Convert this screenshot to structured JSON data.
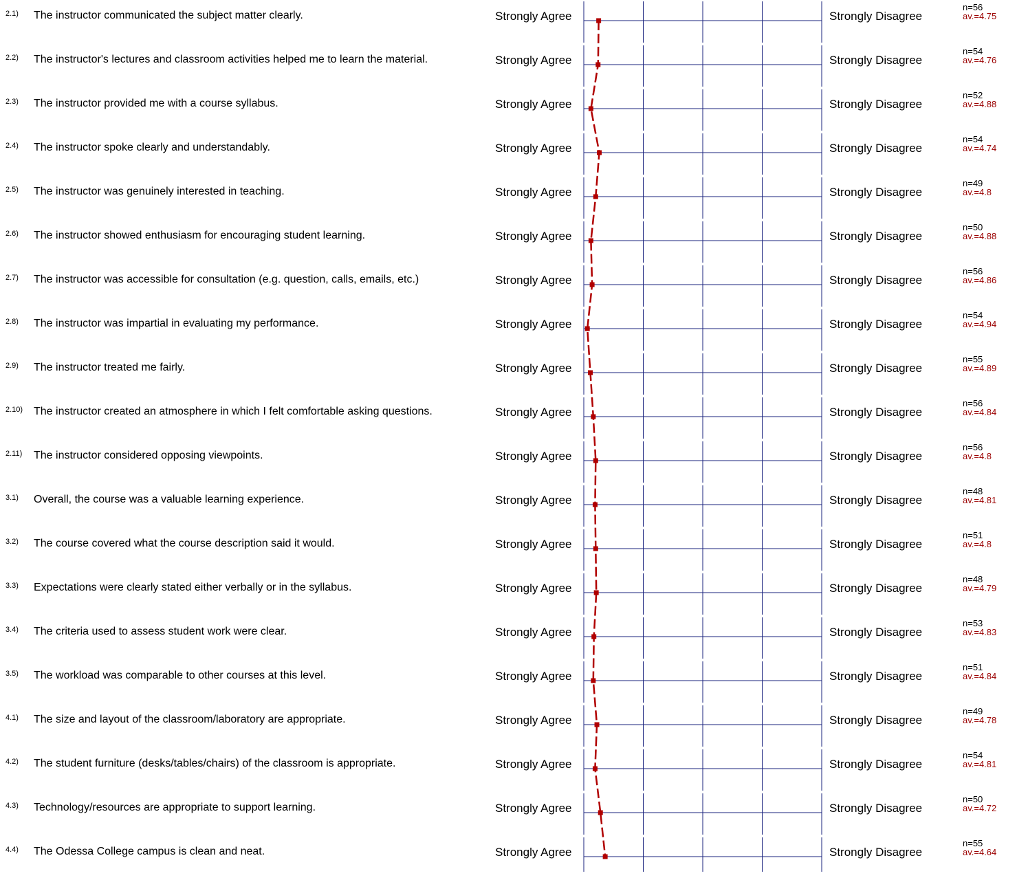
{
  "scale": {
    "left_label": "Strongly Agree",
    "right_label": "Strongly Disagree"
  },
  "colors": {
    "grid": "#1a237e",
    "profile": "#b00000",
    "average": "#9b0000"
  },
  "chart_data": {
    "type": "line",
    "title": "",
    "scale_range": [
      1,
      5
    ],
    "scale_left_value": 5,
    "scale_right_value": 1,
    "grid": true,
    "items": [
      {
        "num": "2.1)",
        "text": "The instructor communicated the subject matter clearly.",
        "n": "n=56",
        "av": "av.=4.75",
        "value": 4.75
      },
      {
        "num": "2.2)",
        "text": "The instructor's lectures and classroom activities helped me to learn the material.",
        "n": "n=54",
        "av": "av.=4.76",
        "value": 4.76
      },
      {
        "num": "2.3)",
        "text": "The instructor provided me with a course syllabus.",
        "n": "n=52",
        "av": "av.=4.88",
        "value": 4.88
      },
      {
        "num": "2.4)",
        "text": "The instructor spoke clearly and understandably.",
        "n": "n=54",
        "av": "av.=4.74",
        "value": 4.74
      },
      {
        "num": "2.5)",
        "text": "The instructor was genuinely interested in teaching.",
        "n": "n=49",
        "av": "av.=4.8",
        "value": 4.8
      },
      {
        "num": "2.6)",
        "text": "The instructor showed enthusiasm for encouraging student learning.",
        "n": "n=50",
        "av": "av.=4.88",
        "value": 4.88
      },
      {
        "num": "2.7)",
        "text": "The instructor was accessible for consultation (e.g. question, calls, emails, etc.)",
        "n": "n=56",
        "av": "av.=4.86",
        "value": 4.86
      },
      {
        "num": "2.8)",
        "text": "The instructor was impartial in evaluating my performance.",
        "n": "n=54",
        "av": "av.=4.94",
        "value": 4.94
      },
      {
        "num": "2.9)",
        "text": "The instructor treated me fairly.",
        "n": "n=55",
        "av": "av.=4.89",
        "value": 4.89
      },
      {
        "num": "2.10)",
        "text": "The instructor created an atmosphere in which I felt comfortable asking questions.",
        "n": "n=56",
        "av": "av.=4.84",
        "value": 4.84
      },
      {
        "num": "2.11)",
        "text": "The instructor considered opposing viewpoints.",
        "n": "n=56",
        "av": "av.=4.8",
        "value": 4.8
      },
      {
        "num": "3.1)",
        "text": "Overall, the course was a valuable learning experience.",
        "n": "n=48",
        "av": "av.=4.81",
        "value": 4.81
      },
      {
        "num": "3.2)",
        "text": "The course covered what the course description said it would.",
        "n": "n=51",
        "av": "av.=4.8",
        "value": 4.8
      },
      {
        "num": "3.3)",
        "text": "Expectations were clearly stated either verbally or in the syllabus.",
        "n": "n=48",
        "av": "av.=4.79",
        "value": 4.79
      },
      {
        "num": "3.4)",
        "text": "The criteria used to assess student work were clear.",
        "n": "n=53",
        "av": "av.=4.83",
        "value": 4.83
      },
      {
        "num": "3.5)",
        "text": "The workload was comparable to other courses at this level.",
        "n": "n=51",
        "av": "av.=4.84",
        "value": 4.84
      },
      {
        "num": "4.1)",
        "text": "The size and layout of the classroom/laboratory are appropriate.",
        "n": "n=49",
        "av": "av.=4.78",
        "value": 4.78
      },
      {
        "num": "4.2)",
        "text": "The student furniture (desks/tables/chairs) of the classroom is appropriate.",
        "n": "n=54",
        "av": "av.=4.81",
        "value": 4.81
      },
      {
        "num": "4.3)",
        "text": "Technology/resources are appropriate to support learning.",
        "n": "n=50",
        "av": "av.=4.72",
        "value": 4.72
      },
      {
        "num": "4.4)",
        "text": "The Odessa College campus is clean and neat.",
        "n": "n=55",
        "av": "av.=4.64",
        "value": 4.64
      }
    ]
  }
}
